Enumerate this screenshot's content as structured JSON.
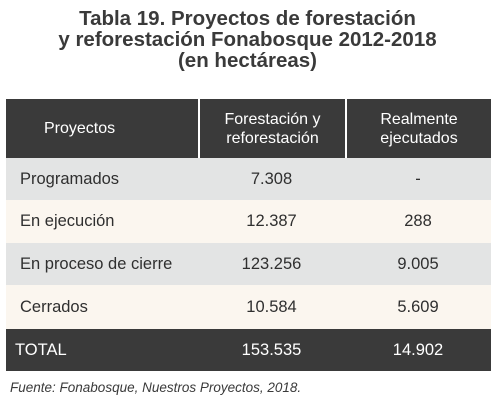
{
  "title": {
    "line1": "Tabla 19. Proyectos de forestación",
    "line2": "y reforestación Fonabosque 2012-2018",
    "line3": "(en hectáreas)"
  },
  "table": {
    "headers": {
      "col1": "Proyectos",
      "col2_line1": "Forestación y",
      "col2_line2": "reforestación",
      "col3_line1": "Realmente",
      "col3_line2": "ejecutados"
    },
    "rows": [
      {
        "label": "Programados",
        "forestacion": "7.308",
        "ejecutados": "-"
      },
      {
        "label": "En ejecución",
        "forestacion": "12.387",
        "ejecutados": "288"
      },
      {
        "label": "En proceso de cierre",
        "forestacion": "123.256",
        "ejecutados": "9.005"
      },
      {
        "label": "Cerrados",
        "forestacion": "10.584",
        "ejecutados": "5.609"
      }
    ],
    "total": {
      "label": "TOTAL",
      "forestacion": "153.535",
      "ejecutados": "14.902"
    }
  },
  "footnote": "Fuente: Fonabosque, Nuestros Proyectos, 2018.",
  "colors": {
    "header_bg": "#3a3a3a",
    "row_gray": "#e3e4e4",
    "row_cream": "#fbf6ef"
  }
}
